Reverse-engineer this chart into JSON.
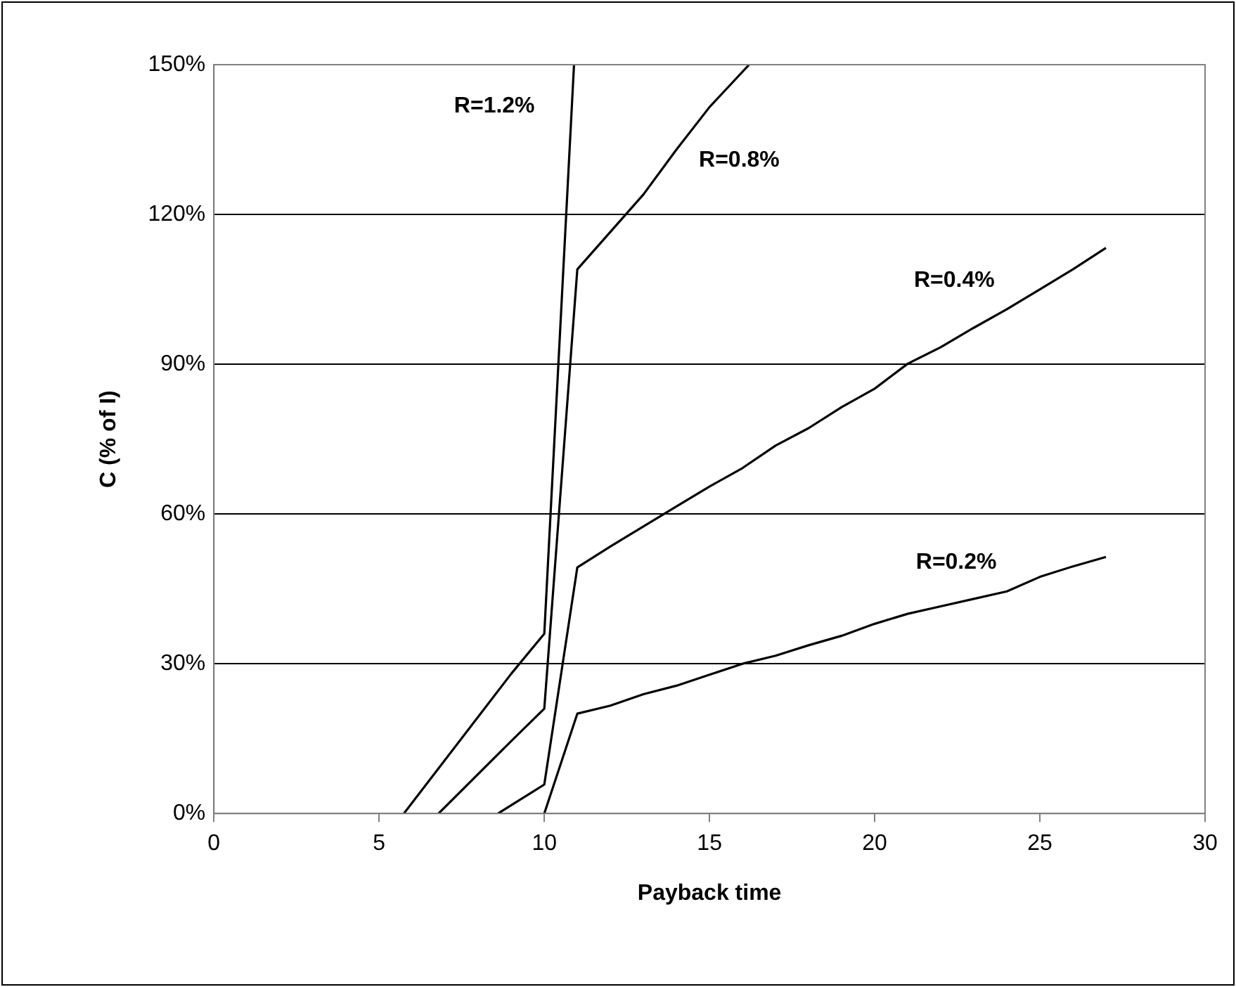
{
  "chart_data": {
    "type": "line",
    "xlabel": "Payback time",
    "ylabel": "C (% of I)",
    "xlim": [
      0,
      30
    ],
    "xticks": [
      0,
      5,
      10,
      15,
      20,
      25,
      30
    ],
    "ylim": [
      0,
      150
    ],
    "yticks": [
      {
        "value": 0,
        "label": "0%"
      },
      {
        "value": 30,
        "label": "30%"
      },
      {
        "value": 60,
        "label": "60%"
      },
      {
        "value": 90,
        "label": "90%"
      },
      {
        "value": 120,
        "label": "120%"
      },
      {
        "value": 150,
        "label": "150%"
      }
    ],
    "grid": "y",
    "legend": false,
    "marker": "none",
    "line_style": "solid",
    "series": [
      {
        "name": "R=1.2%",
        "color": "#000000",
        "x": [
          5.75,
          9,
          10,
          10.9
        ],
        "values": [
          0,
          28,
          36,
          150
        ]
      },
      {
        "name": "R=0.8%",
        "color": "#000000",
        "x": [
          6.8,
          9,
          10,
          11,
          12,
          13,
          14,
          15,
          16.2
        ],
        "values": [
          0,
          14.5,
          21,
          109,
          116.5,
          124,
          133,
          141.5,
          150
        ]
      },
      {
        "name": "R=0.4%",
        "color": "#000000",
        "x": [
          8.6,
          10,
          11,
          12,
          13,
          14,
          15,
          16,
          17,
          18,
          19,
          20,
          21,
          22,
          23,
          24,
          25,
          26,
          27
        ],
        "values": [
          0,
          5.8,
          49.3,
          53.5,
          57.5,
          61.5,
          65.5,
          69.2,
          73.7,
          77.2,
          81.4,
          85.1,
          90.1,
          93.4,
          97.3,
          101,
          105,
          109,
          113.3
        ]
      },
      {
        "name": "R=0.2%",
        "color": "#000000",
        "x": [
          10,
          11,
          12,
          13,
          14,
          15,
          16,
          17,
          18,
          19,
          20,
          21,
          22,
          23,
          24,
          25,
          26,
          27
        ],
        "values": [
          0,
          20,
          21.6,
          23.9,
          25.6,
          27.8,
          30,
          31.6,
          33.7,
          35.6,
          38,
          40,
          41.5,
          43,
          44.5,
          47.4,
          49.5,
          51.4
        ]
      }
    ]
  }
}
